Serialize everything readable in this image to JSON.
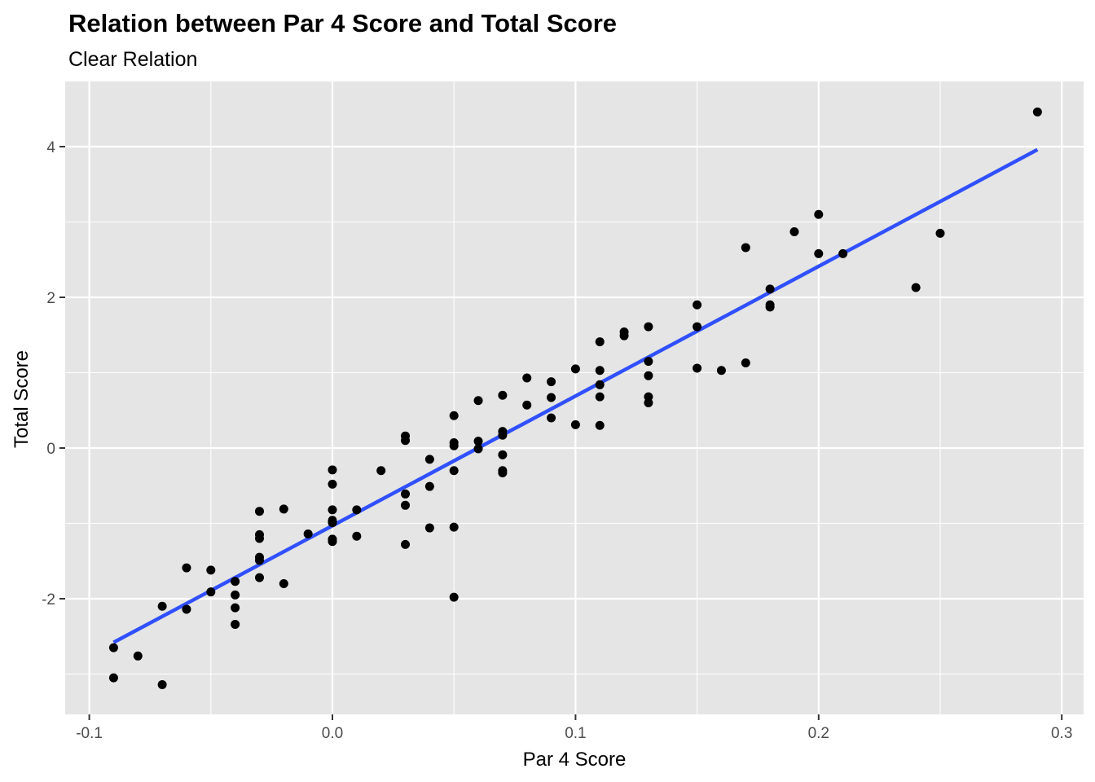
{
  "chart_data": {
    "type": "scatter",
    "title": "Relation between Par 4 Score and Total Score",
    "subtitle": "Clear Relation",
    "xlabel": "Par 4 Score",
    "ylabel": "Total Score",
    "xlim": [
      -0.1,
      0.3
    ],
    "ylim": [
      -3,
      4
    ],
    "xticks": [
      -0.1,
      0.0,
      0.1,
      0.2,
      0.3
    ],
    "xtick_labels": [
      "-0.1",
      "0.0",
      "0.1",
      "0.2",
      "0.3"
    ],
    "yticks": [
      -2,
      0,
      2,
      4
    ],
    "ytick_labels": [
      "-2",
      "0",
      "2",
      "4"
    ],
    "grid": true,
    "legend": "none",
    "colors": {
      "panel": "#e5e5e5",
      "grid": "#ffffff",
      "point": "#000000",
      "fit_line": "#3050ff"
    },
    "points": [
      [
        -0.09,
        -2.65
      ],
      [
        -0.09,
        -3.05
      ],
      [
        -0.08,
        -2.76
      ],
      [
        -0.07,
        -2.1
      ],
      [
        -0.07,
        -3.14
      ],
      [
        -0.06,
        -1.59
      ],
      [
        -0.06,
        -2.14
      ],
      [
        -0.05,
        -1.62
      ],
      [
        -0.05,
        -1.91
      ],
      [
        -0.04,
        -1.77
      ],
      [
        -0.04,
        -1.95
      ],
      [
        -0.04,
        -2.12
      ],
      [
        -0.04,
        -2.34
      ],
      [
        -0.03,
        -0.84
      ],
      [
        -0.03,
        -1.15
      ],
      [
        -0.03,
        -1.2
      ],
      [
        -0.03,
        -1.45
      ],
      [
        -0.03,
        -1.49
      ],
      [
        -0.03,
        -1.72
      ],
      [
        -0.02,
        -0.81
      ],
      [
        -0.02,
        -1.8
      ],
      [
        -0.01,
        -1.14
      ],
      [
        0.0,
        -0.29
      ],
      [
        0.0,
        -0.48
      ],
      [
        0.0,
        -0.82
      ],
      [
        0.0,
        -0.96
      ],
      [
        0.0,
        -0.99
      ],
      [
        0.0,
        -1.21
      ],
      [
        0.0,
        -1.24
      ],
      [
        0.01,
        -0.82
      ],
      [
        0.01,
        -1.17
      ],
      [
        0.02,
        -0.3
      ],
      [
        0.03,
        0.16
      ],
      [
        0.03,
        0.1
      ],
      [
        0.03,
        -0.61
      ],
      [
        0.03,
        -0.76
      ],
      [
        0.03,
        -1.28
      ],
      [
        0.04,
        -0.15
      ],
      [
        0.04,
        -0.51
      ],
      [
        0.04,
        -1.06
      ],
      [
        0.05,
        0.43
      ],
      [
        0.05,
        0.07
      ],
      [
        0.05,
        0.03
      ],
      [
        0.05,
        -0.3
      ],
      [
        0.05,
        -1.05
      ],
      [
        0.05,
        -1.98
      ],
      [
        0.06,
        0.63
      ],
      [
        0.06,
        0.09
      ],
      [
        0.06,
        -0.01
      ],
      [
        0.07,
        0.7
      ],
      [
        0.07,
        0.22
      ],
      [
        0.07,
        0.17
      ],
      [
        0.07,
        -0.09
      ],
      [
        0.07,
        -0.3
      ],
      [
        0.07,
        -0.33
      ],
      [
        0.08,
        0.93
      ],
      [
        0.08,
        0.57
      ],
      [
        0.09,
        0.88
      ],
      [
        0.09,
        0.67
      ],
      [
        0.09,
        0.4
      ],
      [
        0.1,
        1.05
      ],
      [
        0.1,
        0.31
      ],
      [
        0.11,
        1.41
      ],
      [
        0.11,
        1.03
      ],
      [
        0.11,
        0.84
      ],
      [
        0.11,
        0.68
      ],
      [
        0.11,
        0.3
      ],
      [
        0.12,
        1.54
      ],
      [
        0.12,
        1.49
      ],
      [
        0.13,
        1.61
      ],
      [
        0.13,
        1.15
      ],
      [
        0.13,
        0.96
      ],
      [
        0.13,
        0.68
      ],
      [
        0.13,
        0.6
      ],
      [
        0.15,
        1.9
      ],
      [
        0.15,
        1.61
      ],
      [
        0.15,
        1.06
      ],
      [
        0.16,
        1.03
      ],
      [
        0.17,
        2.66
      ],
      [
        0.17,
        1.13
      ],
      [
        0.18,
        2.11
      ],
      [
        0.18,
        1.9
      ],
      [
        0.18,
        1.87
      ],
      [
        0.19,
        2.87
      ],
      [
        0.2,
        3.1
      ],
      [
        0.2,
        2.58
      ],
      [
        0.21,
        2.58
      ],
      [
        0.24,
        2.13
      ],
      [
        0.25,
        2.85
      ],
      [
        0.29,
        4.46
      ]
    ],
    "fit_line": {
      "method": "linear",
      "x": [
        -0.09,
        0.29
      ],
      "y": [
        -2.58,
        3.96
      ]
    }
  }
}
